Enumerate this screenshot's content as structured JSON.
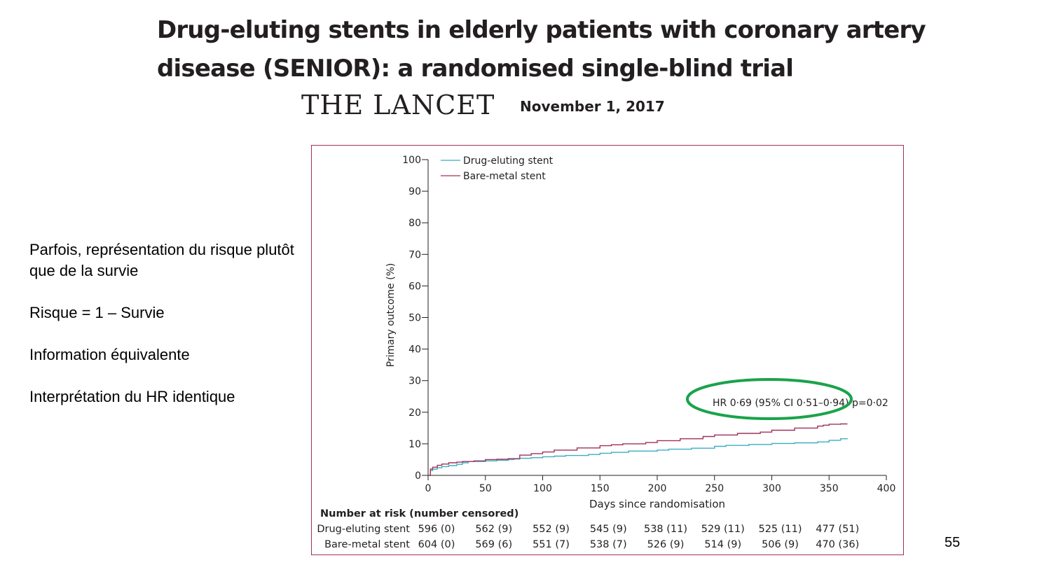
{
  "slide": {
    "title_line1": "Drug-eluting stents in elderly patients with coronary artery",
    "title_line2": "disease (SENIOR): a randomised single-blind trial",
    "journal": "THE LANCET",
    "date": "November 1, 2017",
    "notes": [
      "Parfois, représentation du risque plutôt que de la survie",
      "Risque = 1 – Survie",
      "Information équivalente",
      "Interprétation du HR identique"
    ],
    "page_number": "55"
  },
  "colors": {
    "des": "#3aaec3",
    "bms": "#a0315a",
    "highlight": "#1aa34a",
    "frame": "#a0315a"
  },
  "chart_data": {
    "type": "line",
    "title": "",
    "xlabel": "Days since randomisation",
    "ylabel": "Primary outcome (%)",
    "xlim": [
      0,
      400
    ],
    "ylim": [
      0,
      100
    ],
    "xticks": [
      0,
      50,
      100,
      150,
      200,
      250,
      300,
      350,
      400
    ],
    "yticks": [
      0,
      10,
      20,
      30,
      40,
      50,
      60,
      70,
      80,
      90,
      100
    ],
    "grid": false,
    "legend_position": "top-left",
    "series": [
      {
        "name": "Drug-eluting stent",
        "color": "#3aaec3",
        "x": [
          0,
          2,
          4,
          8,
          12,
          18,
          25,
          30,
          35,
          50,
          60,
          70,
          75,
          80,
          90,
          100,
          110,
          120,
          140,
          150,
          160,
          175,
          200,
          210,
          230,
          250,
          260,
          280,
          300,
          320,
          340,
          350,
          360,
          366
        ],
        "y": [
          0,
          1.5,
          2,
          2.4,
          2.8,
          3.1,
          3.5,
          4,
          4.4,
          4.6,
          4.8,
          5,
          5.2,
          5.4,
          5.6,
          5.9,
          6.1,
          6.3,
          6.6,
          7,
          7.3,
          7.7,
          8,
          8.3,
          8.6,
          9.2,
          9.5,
          9.8,
          10.1,
          10.3,
          10.6,
          11.1,
          11.6,
          11.7
        ]
      },
      {
        "name": "Bare-metal stent",
        "color": "#a0315a",
        "x": [
          0,
          2,
          4,
          8,
          12,
          18,
          25,
          30,
          40,
          50,
          60,
          70,
          80,
          90,
          100,
          110,
          130,
          150,
          160,
          170,
          190,
          200,
          220,
          240,
          250,
          270,
          290,
          300,
          320,
          340,
          345,
          350,
          360,
          366
        ],
        "y": [
          0,
          2,
          2.6,
          3.2,
          3.6,
          4,
          4.2,
          4.4,
          4.6,
          5,
          5.1,
          5.3,
          6.4,
          6.9,
          7.4,
          8,
          8.7,
          9.4,
          9.7,
          10,
          10.4,
          11,
          11.6,
          12.3,
          12.8,
          13.3,
          13.7,
          14.3,
          15,
          15.6,
          15.9,
          16.2,
          16.3,
          16.3
        ]
      }
    ],
    "annotation": "HR 0·69 (95% CI 0·51–0·94) p=0·02",
    "risk_table": {
      "header": "Number at risk (number censored)",
      "rows": [
        {
          "label": "Drug-eluting stent",
          "values": [
            "596 (0)",
            "562 (9)",
            "552 (9)",
            "545 (9)",
            "538 (11)",
            "529 (11)",
            "525 (11)",
            "477 (51)"
          ]
        },
        {
          "label": "Bare-metal stent",
          "values": [
            "604 (0)",
            "569 (6)",
            "551 (7)",
            "538 (7)",
            "526 (9)",
            "514 (9)",
            "506 (9)",
            "470 (36)"
          ]
        }
      ]
    }
  }
}
